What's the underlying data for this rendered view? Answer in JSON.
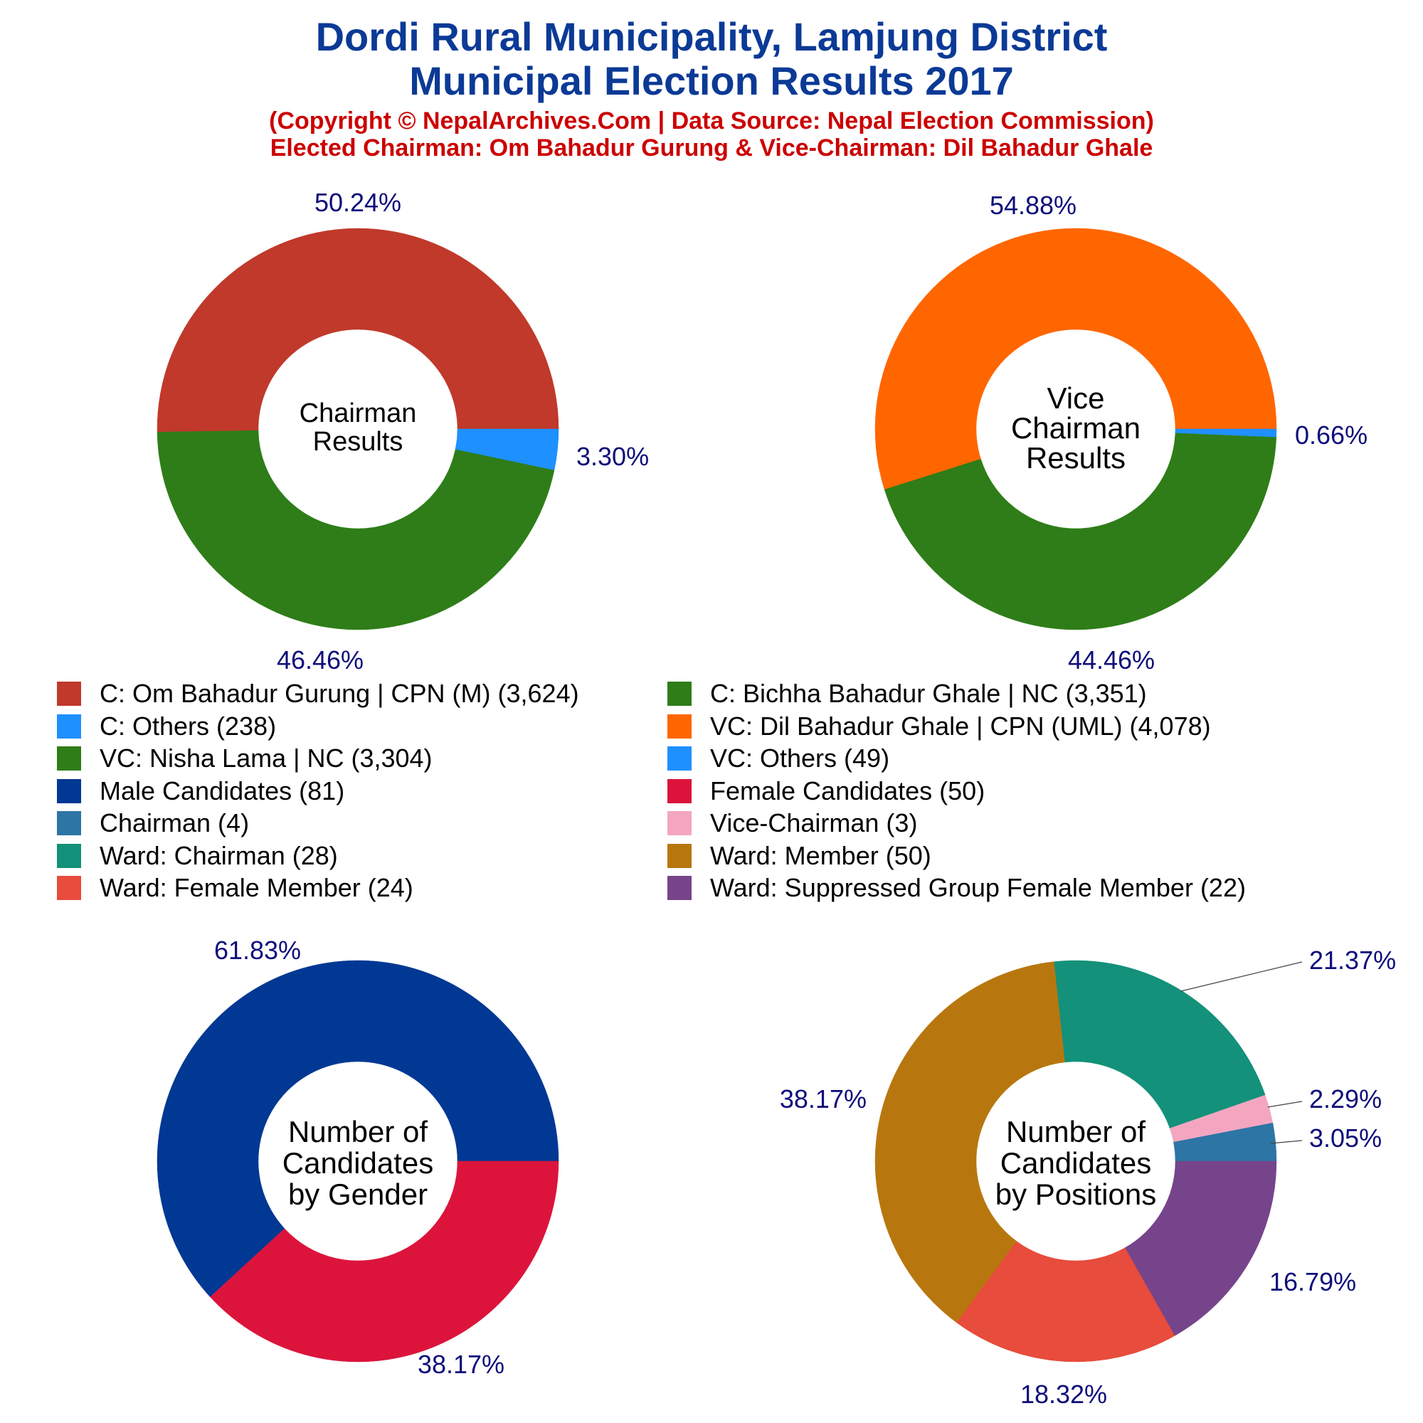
{
  "header": {
    "title_line1": "Dordi Rural Municipality, Lamjung District",
    "title_line2": "Municipal Election Results 2017",
    "subtitle_line1": "(Copyright © NepalArchives.Com | Data Source: Nepal Election Commission)",
    "subtitle_line2": "Elected Chairman: Om Bahadur Gurung & Vice-Chairman: Dil Bahadur Ghale"
  },
  "legend": {
    "items": [
      {
        "label": "C: Om Bahadur Gurung | CPN (M) (3,624)",
        "color": "#c0392b"
      },
      {
        "label": "C: Bichha Bahadur Ghale | NC (3,351)",
        "color": "#2e7d18"
      },
      {
        "label": "C: Others (238)",
        "color": "#1e90ff"
      },
      {
        "label": "VC: Dil Bahadur Ghale | CPN (UML) (4,078)",
        "color": "#ff6600"
      },
      {
        "label": "VC: Nisha Lama | NC (3,304)",
        "color": "#2e7d18"
      },
      {
        "label": "VC: Others (49)",
        "color": "#1e90ff"
      },
      {
        "label": "Male Candidates (81)",
        "color": "#003893"
      },
      {
        "label": "Female Candidates (50)",
        "color": "#dc143c"
      },
      {
        "label": "Chairman (4)",
        "color": "#2c75a5"
      },
      {
        "label": "Vice-Chairman (3)",
        "color": "#f4a6c1"
      },
      {
        "label": "Ward: Chairman (28)",
        "color": "#13917a"
      },
      {
        "label": "Ward: Member (50)",
        "color": "#b8770e"
      },
      {
        "label": "Ward: Female Member (24)",
        "color": "#e74c3c"
      },
      {
        "label": "Ward: Suppressed Group Female Member (22)",
        "color": "#76448a"
      }
    ]
  },
  "chart_data": [
    {
      "type": "pie",
      "title": "Chairman Results",
      "center_lines": [
        "Chairman",
        "Results"
      ],
      "slices": [
        {
          "name": "C: Om Bahadur Gurung | CPN (M)",
          "value": 3624,
          "label": "50.24%",
          "color": "#c0392b"
        },
        {
          "name": "C: Others",
          "value": 238,
          "label": "3.30%",
          "color": "#1e90ff"
        },
        {
          "name": "C: Bichha Bahadur Ghale | NC",
          "value": 3351,
          "label": "46.46%",
          "color": "#2e7d18"
        }
      ]
    },
    {
      "type": "pie",
      "title": "Vice Chairman Results",
      "center_lines": [
        "Vice",
        "Chairman",
        "Results"
      ],
      "slices": [
        {
          "name": "VC: Dil Bahadur Ghale | CPN (UML)",
          "value": 4078,
          "label": "54.88%",
          "color": "#ff6600"
        },
        {
          "name": "VC: Others",
          "value": 49,
          "label": "0.66%",
          "color": "#1e90ff"
        },
        {
          "name": "VC: Nisha Lama | NC",
          "value": 3304,
          "label": "44.46%",
          "color": "#2e7d18"
        }
      ]
    },
    {
      "type": "pie",
      "title": "Number of Candidates by Gender",
      "center_lines": [
        "Number of",
        "Candidates",
        "by Gender"
      ],
      "slices": [
        {
          "name": "Male Candidates",
          "value": 81,
          "label": "61.83%",
          "color": "#003893"
        },
        {
          "name": "Female Candidates",
          "value": 50,
          "label": "38.17%",
          "color": "#dc143c"
        }
      ]
    },
    {
      "type": "pie",
      "title": "Number of Candidates by Positions",
      "center_lines": [
        "Number of",
        "Candidates",
        "by Positions"
      ],
      "slices": [
        {
          "name": "Ward: Member",
          "value": 50,
          "label": "38.17%",
          "color": "#b8770e"
        },
        {
          "name": "Ward: Chairman",
          "value": 28,
          "label": "21.37%",
          "color": "#13917a"
        },
        {
          "name": "Vice-Chairman",
          "value": 3,
          "label": "2.29%",
          "color": "#f4a6c1"
        },
        {
          "name": "Chairman",
          "value": 4,
          "label": "3.05%",
          "color": "#2c75a5"
        },
        {
          "name": "Ward: Suppressed Group Female Member",
          "value": 22,
          "label": "16.79%",
          "color": "#76448a"
        },
        {
          "name": "Ward: Female Member",
          "value": 24,
          "label": "18.32%",
          "color": "#e74c3c"
        }
      ]
    }
  ]
}
